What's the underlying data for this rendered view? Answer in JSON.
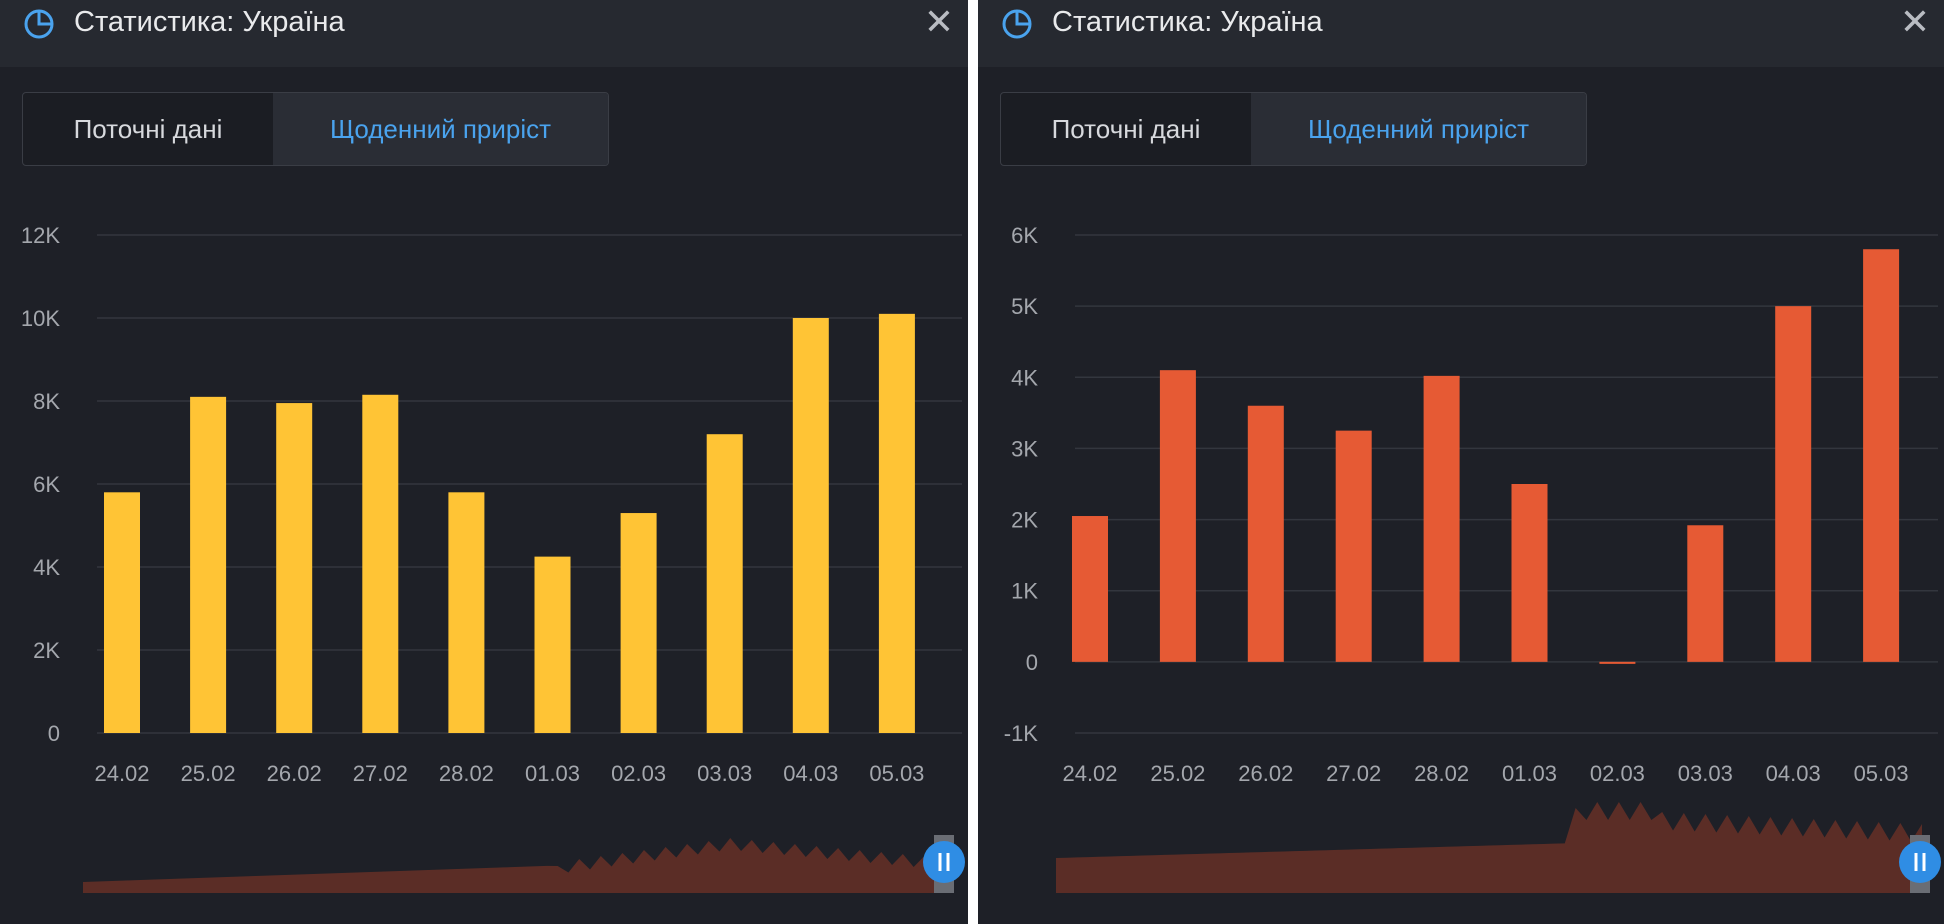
{
  "colors": {
    "accent": "#4aa3ee",
    "nav_fill": "#5b2d26",
    "handle": "#2f8de4"
  },
  "panels": [
    {
      "title": "Статистика: Україна",
      "close_icon": "close-icon",
      "tabs": [
        {
          "label": "Поточні дані",
          "active": false
        },
        {
          "label": "Щоденний приріст",
          "active": true
        }
      ]
    },
    {
      "title": "Статистика: Україна",
      "close_icon": "close-icon",
      "tabs": [
        {
          "label": "Поточні дані",
          "active": false
        },
        {
          "label": "Щоденний приріст",
          "active": true
        }
      ]
    }
  ],
  "chart_data": [
    {
      "type": "bar",
      "title": "",
      "xlabel": "",
      "ylabel": "",
      "categories": [
        "24.02",
        "25.02",
        "26.02",
        "27.02",
        "28.02",
        "01.03",
        "02.03",
        "03.03",
        "04.03",
        "05.03"
      ],
      "values": [
        5800,
        8100,
        7950,
        8150,
        5800,
        4250,
        5300,
        7200,
        10000,
        10100
      ],
      "ylim": [
        0,
        12000
      ],
      "yticks": [
        0,
        2000,
        4000,
        6000,
        8000,
        10000,
        12000
      ],
      "ytick_labels": [
        "0",
        "2K",
        "4K",
        "6K",
        "8K",
        "10K",
        "12K"
      ],
      "color": "#ffc435",
      "grid": true
    },
    {
      "type": "bar",
      "title": "",
      "xlabel": "",
      "ylabel": "",
      "categories": [
        "24.02",
        "25.02",
        "26.02",
        "27.02",
        "28.02",
        "01.03",
        "02.03",
        "03.03",
        "04.03",
        "05.03"
      ],
      "values": [
        2050,
        4100,
        3600,
        3250,
        4020,
        2500,
        -20,
        1920,
        5000,
        5800
      ],
      "ylim": [
        -1000,
        6000
      ],
      "yticks": [
        -1000,
        0,
        1000,
        2000,
        3000,
        4000,
        5000,
        6000
      ],
      "ytick_labels": [
        "-1K",
        "0",
        "1K",
        "2K",
        "3K",
        "4K",
        "5K",
        "6K"
      ],
      "color": "#e65a34",
      "grid": true
    }
  ]
}
